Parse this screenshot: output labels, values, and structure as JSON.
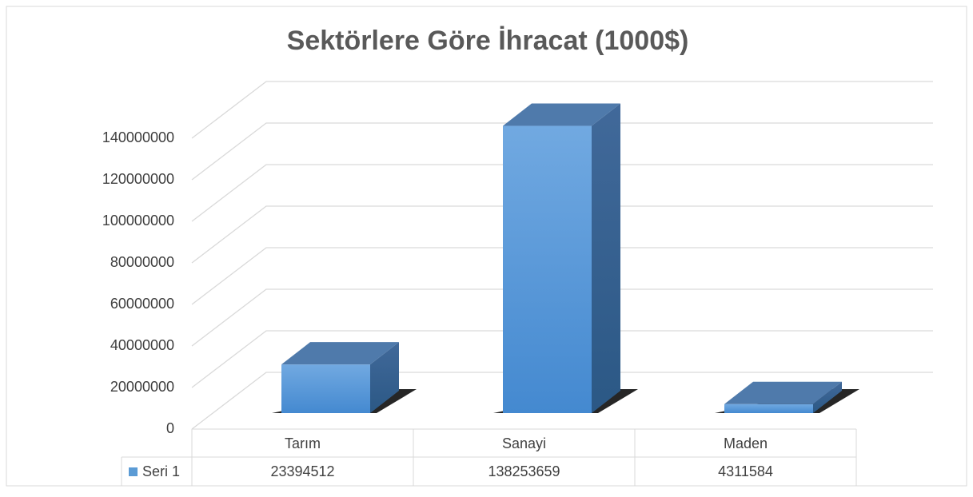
{
  "chart_data": {
    "type": "bar3d",
    "title": "Sektörlere Göre İhracat (1000$)",
    "categories": [
      "Tarım",
      "Sanayi",
      "Maden"
    ],
    "series": [
      {
        "name": "Seri 1",
        "color": "#5b9bd5",
        "values": [
          23394512,
          138253659,
          4311584
        ]
      }
    ],
    "ylim": [
      0,
      140000000
    ],
    "yticks": [
      0,
      20000000,
      40000000,
      60000000,
      80000000,
      100000000,
      120000000,
      140000000
    ],
    "grid": true,
    "data_table": true
  }
}
